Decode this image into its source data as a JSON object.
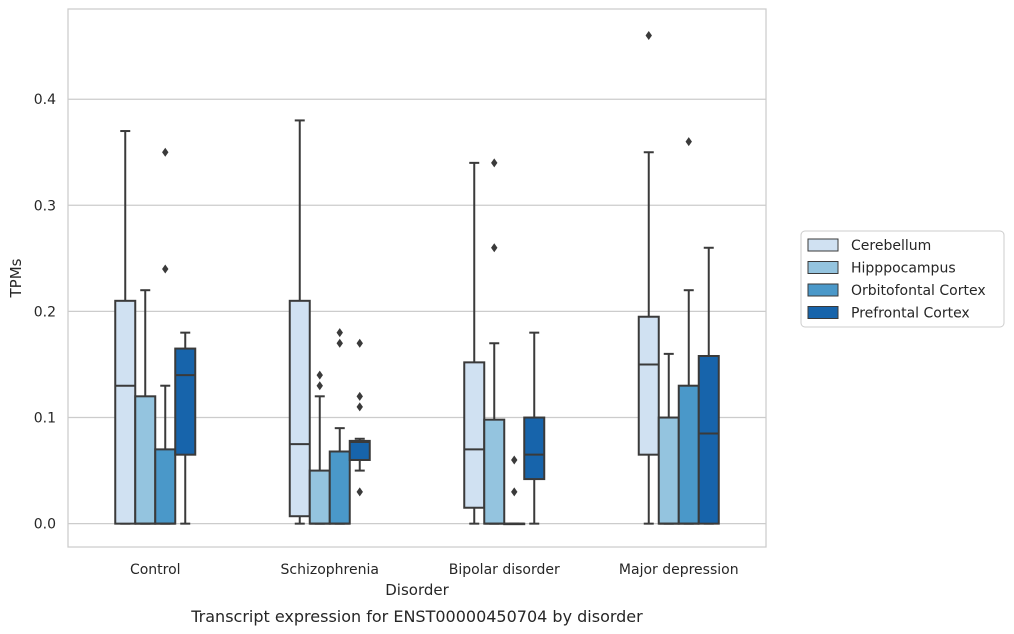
{
  "chart_data": {
    "type": "box",
    "caption": "Transcript expression for ENST00000450704 by disorder",
    "xlabel": "Disorder",
    "ylabel": "TPMs",
    "ylim": [
      -0.022,
      0.485
    ],
    "yticks": [
      0.0,
      0.1,
      0.2,
      0.3,
      0.4
    ],
    "ytick_labels": [
      "0.0",
      "0.1",
      "0.2",
      "0.3",
      "0.4"
    ],
    "grid": "horizontal",
    "legend_position": "right",
    "categories": [
      "Control",
      "Schizophrenia",
      "Bipolar disorder",
      "Major depression"
    ],
    "series": [
      {
        "name": "Cerebellum",
        "color": "#d0e1f2",
        "boxes": [
          {
            "whislo": 0.0,
            "q1": 0.0,
            "med": 0.13,
            "q3": 0.21,
            "whishi": 0.37,
            "fliers": []
          },
          {
            "whislo": 0.0,
            "q1": 0.007,
            "med": 0.075,
            "q3": 0.21,
            "whishi": 0.38,
            "fliers": []
          },
          {
            "whislo": 0.0,
            "q1": 0.015,
            "med": 0.07,
            "q3": 0.152,
            "whishi": 0.34,
            "fliers": []
          },
          {
            "whislo": 0.0,
            "q1": 0.065,
            "med": 0.15,
            "q3": 0.195,
            "whishi": 0.35,
            "fliers": [
              0.46
            ]
          }
        ]
      },
      {
        "name": "Hipppocampus",
        "color": "#94c4df",
        "boxes": [
          {
            "whislo": 0.0,
            "q1": 0.0,
            "med": 0.0,
            "q3": 0.12,
            "whishi": 0.22,
            "fliers": []
          },
          {
            "whislo": 0.0,
            "q1": 0.0,
            "med": 0.0,
            "q3": 0.05,
            "whishi": 0.12,
            "fliers": [
              0.13,
              0.14
            ]
          },
          {
            "whislo": 0.0,
            "q1": 0.0,
            "med": 0.0,
            "q3": 0.098,
            "whishi": 0.17,
            "fliers": [
              0.26,
              0.34
            ]
          },
          {
            "whislo": 0.0,
            "q1": 0.0,
            "med": 0.0,
            "q3": 0.1,
            "whishi": 0.16,
            "fliers": []
          }
        ]
      },
      {
        "name": "Orbitofontal Cortex",
        "color": "#4a98c9",
        "boxes": [
          {
            "whislo": 0.0,
            "q1": 0.0,
            "med": 0.0,
            "q3": 0.07,
            "whishi": 0.13,
            "fliers": [
              0.24,
              0.35
            ]
          },
          {
            "whislo": 0.0,
            "q1": 0.0,
            "med": 0.0,
            "q3": 0.068,
            "whishi": 0.09,
            "fliers": [
              0.17,
              0.18
            ]
          },
          {
            "whislo": 0.0,
            "q1": 0.0,
            "med": 0.0,
            "q3": 0.0,
            "whishi": 0.0,
            "fliers": [
              0.03,
              0.06
            ]
          },
          {
            "whislo": 0.0,
            "q1": 0.0,
            "med": 0.0,
            "q3": 0.13,
            "whishi": 0.22,
            "fliers": [
              0.36
            ]
          }
        ]
      },
      {
        "name": "Prefrontal Cortex",
        "color": "#1764ab",
        "boxes": [
          {
            "whislo": 0.0,
            "q1": 0.065,
            "med": 0.14,
            "q3": 0.165,
            "whishi": 0.18,
            "fliers": []
          },
          {
            "whislo": 0.05,
            "q1": 0.06,
            "med": 0.077,
            "q3": 0.078,
            "whishi": 0.08,
            "fliers": [
              0.03,
              0.11,
              0.12,
              0.17
            ]
          },
          {
            "whislo": 0.0,
            "q1": 0.042,
            "med": 0.065,
            "q3": 0.1,
            "whishi": 0.18,
            "fliers": []
          },
          {
            "whislo": 0.0,
            "q1": 0.0,
            "med": 0.085,
            "q3": 0.158,
            "whishi": 0.26,
            "fliers": []
          }
        ]
      }
    ]
  }
}
